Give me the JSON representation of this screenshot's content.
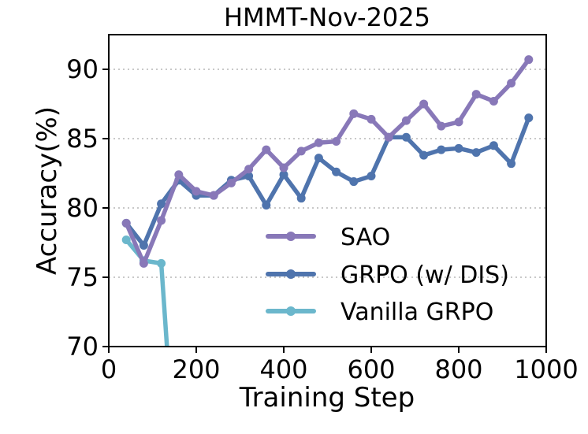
{
  "chart_data": {
    "type": "line",
    "title": "HMMT-Nov-2025",
    "xlabel": "Training Step",
    "ylabel": "Accuracy(%)",
    "xlim": [
      0,
      1000
    ],
    "ylim": [
      70,
      92.5
    ],
    "xticks": [
      0,
      200,
      400,
      600,
      800,
      1000
    ],
    "yticks": [
      70,
      75,
      80,
      85,
      90
    ],
    "grid": "horizontal-dotted",
    "legend_position": "lower-right",
    "series": [
      {
        "name": "SAO",
        "color": "#8878b8",
        "x": [
          40,
          80,
          120,
          160,
          200,
          240,
          280,
          320,
          360,
          400,
          440,
          480,
          520,
          560,
          600,
          640,
          680,
          720,
          760,
          800,
          840,
          880,
          920,
          960
        ],
        "y": [
          78.9,
          76.0,
          79.1,
          82.4,
          81.2,
          80.9,
          81.8,
          82.8,
          84.2,
          82.9,
          84.1,
          84.7,
          84.8,
          86.8,
          86.4,
          85.1,
          86.3,
          87.5,
          85.9,
          86.2,
          88.2,
          87.7,
          89.0,
          90.7
        ]
      },
      {
        "name": "GRPO (w/ DIS)",
        "color": "#4f74ad",
        "x": [
          40,
          80,
          120,
          160,
          200,
          240,
          280,
          320,
          360,
          400,
          440,
          480,
          520,
          560,
          600,
          640,
          680,
          720,
          760,
          800,
          840,
          880,
          920,
          960
        ],
        "y": [
          78.9,
          77.3,
          80.3,
          82.0,
          80.9,
          80.9,
          82.0,
          82.3,
          80.2,
          82.4,
          80.7,
          83.6,
          82.6,
          81.9,
          82.3,
          85.1,
          85.1,
          83.8,
          84.2,
          84.3,
          84.0,
          84.5,
          83.2,
          86.5
        ]
      },
      {
        "name": "Vanilla GRPO",
        "color": "#6bb7cc",
        "x": [
          40,
          80,
          120,
          133
        ],
        "y": [
          77.7,
          76.2,
          76.0,
          70.0
        ]
      }
    ]
  }
}
